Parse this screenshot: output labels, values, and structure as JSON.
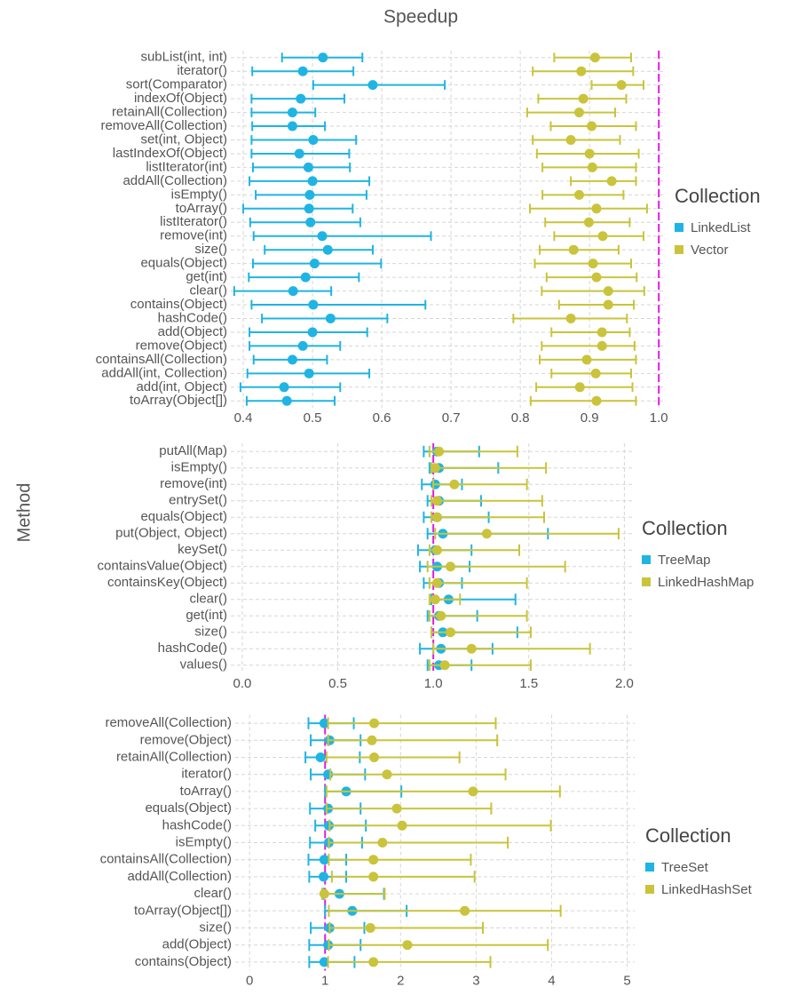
{
  "title": "Speedup",
  "y_label": "Method",
  "chart_data": [
    {
      "type": "dot",
      "legend_title": "Collection",
      "categories": [
        "subList(int, int)",
        "iterator()",
        "sort(Comparator)",
        "indexOf(Object)",
        "retainAll(Collection)",
        "removeAll(Collection)",
        "set(int, Object)",
        "lastIndexOf(Object)",
        "listIterator(int)",
        "addAll(Collection)",
        "isEmpty()",
        "toArray()",
        "listIterator()",
        "remove(int)",
        "size()",
        "equals(Object)",
        "get(int)",
        "clear()",
        "contains(Object)",
        "hashCode()",
        "add(Object)",
        "remove(Object)",
        "containsAll(Collection)",
        "addAll(int, Collection)",
        "add(int, Object)",
        "toArray(Object[])"
      ],
      "series": [
        {
          "name": "LinkedList",
          "color": "#1fb4e3",
          "values": [
            0.515,
            0.486,
            0.587,
            0.483,
            0.471,
            0.471,
            0.501,
            0.481,
            0.494,
            0.5,
            0.496,
            0.495,
            0.497,
            0.514,
            0.522,
            0.503,
            0.49,
            0.472,
            0.501,
            0.526,
            0.5,
            0.486,
            0.471,
            0.495,
            0.459,
            0.463
          ],
          "lower": [
            0.456,
            0.413,
            0.501,
            0.412,
            0.412,
            0.413,
            0.412,
            0.412,
            0.414,
            0.409,
            0.418,
            0.4,
            0.41,
            0.415,
            0.431,
            0.414,
            0.408,
            0.387,
            0.412,
            0.427,
            0.409,
            0.409,
            0.415,
            0.406,
            0.396,
            0.405
          ],
          "upper": [
            0.572,
            0.559,
            0.691,
            0.546,
            0.504,
            0.518,
            0.563,
            0.553,
            0.554,
            0.582,
            0.578,
            0.558,
            0.569,
            0.671,
            0.587,
            0.599,
            0.567,
            0.527,
            0.663,
            0.608,
            0.579,
            0.54,
            0.521,
            0.582,
            0.54,
            0.532
          ]
        },
        {
          "name": "Vector",
          "color": "#c9c43b",
          "values": [
            0.908,
            0.888,
            0.946,
            0.891,
            0.885,
            0.903,
            0.873,
            0.9,
            0.904,
            0.932,
            0.885,
            0.91,
            0.899,
            0.919,
            0.877,
            0.905,
            0.91,
            0.927,
            0.927,
            0.873,
            0.918,
            0.918,
            0.896,
            0.909,
            0.886,
            0.91
          ],
          "lower": [
            0.849,
            0.818,
            0.903,
            0.826,
            0.81,
            0.844,
            0.818,
            0.824,
            0.832,
            0.873,
            0.832,
            0.814,
            0.836,
            0.849,
            0.828,
            0.821,
            0.838,
            0.831,
            0.856,
            0.79,
            0.845,
            0.831,
            0.828,
            0.845,
            0.823,
            0.815
          ],
          "upper": [
            0.96,
            0.963,
            0.978,
            0.953,
            0.937,
            0.967,
            0.944,
            0.971,
            0.967,
            0.967,
            0.949,
            0.983,
            0.958,
            0.978,
            0.942,
            0.96,
            0.968,
            0.979,
            0.964,
            0.954,
            0.958,
            0.965,
            0.967,
            0.96,
            0.962,
            0.967
          ]
        }
      ],
      "reference_line": 1,
      "xlim": [
        0.382,
        1.01
      ],
      "xticks": [
        0.4,
        0.5,
        0.6,
        0.7,
        0.8,
        0.9,
        {
          "value": 1,
          "label": "1.0"
        }
      ]
    },
    {
      "type": "dot",
      "legend_title": "Collection",
      "categories": [
        "putAll(Map)",
        "isEmpty()",
        "remove(int)",
        "entrySet()",
        "equals(Object)",
        "put(Object, Object)",
        "keySet()",
        "containsValue(Object)",
        "containsKey(Object)",
        "clear()",
        "get(int)",
        "size()",
        "hashCode()",
        "values()"
      ],
      "series": [
        {
          "name": "TreeMap",
          "color": "#1fb4e3",
          "values": [
            1.02,
            1.03,
            1.01,
            1.03,
            1.02,
            1.05,
            1.01,
            1.02,
            1.03,
            1.08,
            1.03,
            1.05,
            1.04,
            1.03
          ],
          "lower": [
            0.95,
            0.98,
            0.94,
            0.97,
            0.95,
            0.97,
            0.92,
            0.93,
            0.95,
            0.99,
            0.97,
            0.99,
            0.93,
            0.97
          ],
          "upper": [
            1.24,
            1.34,
            1.15,
            1.25,
            1.29,
            1.6,
            1.2,
            1.19,
            1.15,
            1.43,
            1.23,
            1.44,
            1.31,
            1.2
          ]
        },
        {
          "name": "LinkedHashMap",
          "color": "#c9c43b",
          "values": [
            1.03,
            1.01,
            1.11,
            1.02,
            1.02,
            1.28,
            1.02,
            1.09,
            1.02,
            1.01,
            1.04,
            1.09,
            1.2,
            1.06
          ],
          "lower": [
            0.98,
            0.99,
            1.0,
            0.99,
            0.99,
            1.01,
            0.98,
            0.97,
            0.98,
            0.98,
            0.98,
            0.99,
            1.0,
            0.98
          ],
          "upper": [
            1.44,
            1.59,
            1.49,
            1.57,
            1.58,
            1.97,
            1.45,
            1.69,
            1.49,
            1.14,
            1.49,
            1.51,
            1.82,
            1.51
          ]
        }
      ],
      "reference_line": 1,
      "xlim": [
        -0.06,
        2.04
      ],
      "xticks": [
        {
          "value": 0,
          "label": "0.0"
        },
        0.5,
        {
          "value": 1,
          "label": "1.0"
        },
        1.5,
        {
          "value": 2,
          "label": "2.0"
        }
      ]
    },
    {
      "type": "dot",
      "legend_title": "Collection",
      "categories": [
        "removeAll(Collection)",
        "remove(Object)",
        "retainAll(Collection)",
        "iterator()",
        "toArray()",
        "equals(Object)",
        "hashCode()",
        "isEmpty()",
        "containsAll(Collection)",
        "addAll(Collection)",
        "clear()",
        "toArray(Object[])",
        "size()",
        "add(Object)",
        "contains(Object)"
      ],
      "series": [
        {
          "name": "TreeSet",
          "color": "#1fb4e3",
          "values": [
            0.99,
            1.06,
            0.94,
            1.04,
            1.28,
            1.04,
            1.05,
            1.05,
            0.99,
            0.98,
            1.19,
            1.36,
            1.06,
            1.04,
            0.99
          ],
          "lower": [
            0.78,
            0.81,
            0.74,
            0.81,
            1.0,
            0.8,
            0.87,
            0.8,
            0.78,
            0.79,
            0.98,
            1.0,
            0.81,
            0.79,
            0.79
          ],
          "upper": [
            1.38,
            1.47,
            1.46,
            1.53,
            2.01,
            1.47,
            1.54,
            1.49,
            1.28,
            1.28,
            1.78,
            2.08,
            1.52,
            1.47,
            1.39
          ]
        },
        {
          "name": "LinkedHashSet",
          "color": "#c9c43b",
          "values": [
            1.65,
            1.62,
            1.65,
            1.82,
            2.96,
            1.95,
            2.02,
            1.76,
            1.64,
            1.64,
            0.99,
            2.85,
            1.6,
            2.09,
            1.64
          ],
          "lower": [
            1.04,
            1.04,
            1.02,
            1.07,
            1.02,
            1.02,
            1.06,
            1.05,
            1.05,
            1.09,
            0.96,
            1.05,
            1.06,
            1.05,
            1.04
          ],
          "upper": [
            3.26,
            3.28,
            2.78,
            3.39,
            4.11,
            3.2,
            3.99,
            3.42,
            2.93,
            2.98,
            1.79,
            4.12,
            3.09,
            3.95,
            3.19
          ]
        }
      ],
      "reference_line": 1,
      "xlim": [
        -0.19,
        5.1
      ],
      "xticks": [
        0,
        1,
        2,
        3,
        4,
        5
      ]
    }
  ]
}
